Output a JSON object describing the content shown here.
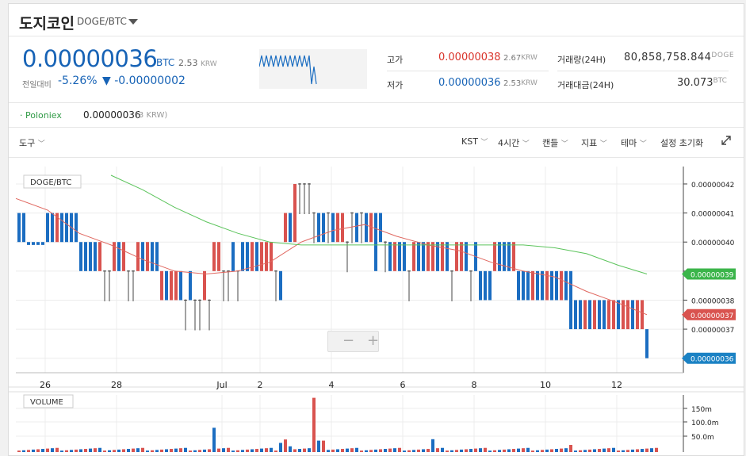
{
  "header": {
    "coin_name": "도지코인",
    "pair": "DOGE/BTC"
  },
  "ticker": {
    "price": "0.00000036",
    "price_unit": "BTC",
    "price_krw": "2.53",
    "price_krw_unit": "KRW",
    "change_label": "전일대비",
    "change_pct": "-5.26%",
    "change_abs": "▼ -0.00000002"
  },
  "stats": {
    "high_label": "고가",
    "high_value": "0.00000038",
    "high_krw": "2.67",
    "high_krw_unit": "KRW",
    "low_label": "저가",
    "low_value": "0.00000036",
    "low_krw": "2.53",
    "low_krw_unit": "KRW",
    "volume_label": "거래량(24H)",
    "volume_value": "80,858,758.844",
    "volume_unit": "DOGE",
    "turnover_label": "거래대금(24H)",
    "turnover_value": "30.073",
    "turnover_unit": "BTC"
  },
  "exchange": {
    "name": "· Poloniex",
    "price": "0.00000036",
    "krw": "(3 KRW)"
  },
  "toolbar": {
    "tools": "도구",
    "timezone": "KST",
    "interval": "4시간",
    "chart_type": "캔들",
    "indicators": "지표",
    "theme": "테마",
    "reset": "설정 초기화",
    "expand_icon": "expand-icon",
    "dropdown_icon": "chevron-down-icon"
  },
  "colors": {
    "up": "#d9534f",
    "down": "#1b6dc1",
    "ma_short": "#e0675f",
    "ma_long": "#5cc45c",
    "ma_long_tag": "#3bb54a",
    "last_tag": "#1b82c4",
    "ma_short_tag": "#d9534f"
  },
  "chart_data": {
    "type": "candlestick",
    "title": "DOGE/BTC",
    "x_tick_labels": [
      "26",
      "28",
      "Jul",
      "2",
      "4",
      "6",
      "8",
      "10",
      "12"
    ],
    "y_tick_labels": [
      "0.00000042",
      "0.00000041",
      "0.00000040",
      "0.00000039",
      "0.00000038",
      "0.00000037",
      "0.00000036"
    ],
    "ylim": [
      3.55e-07,
      4.26e-07
    ],
    "grid": true,
    "price_tags": [
      {
        "label": "0.00000039",
        "value": 3.89e-07,
        "color": "#3bb54a"
      },
      {
        "label": "0.00000037",
        "value": 3.75e-07,
        "color": "#d9534f"
      },
      {
        "label": "0.00000036",
        "value": 3.6e-07,
        "color": "#1b82c4"
      }
    ],
    "ohlc_pattern": "0.00000040-0.00000041 (Jun 25-27), 0.00000039-0.00000040 (Jun 27-29), 0.00000038-0.00000039 (Jun 29-30), 0.00000039-0.00000040 (Jul 1-2), rise to 0.00000042 (Jul 3), 0.00000040-0.00000041 (Jul 3-5), 0.00000039-0.00000040 (Jul 5-8), 0.00000038-0.00000039 (Jul 8-9), 0.00000037-0.00000039 (Jul 10-12), drop to 0.00000036 (Jul 13)",
    "volume": {
      "title": "VOLUME",
      "y_tick_labels": [
        "150m",
        "100.0m",
        "50.0m"
      ],
      "ylim": [
        0,
        200000000
      ],
      "peak_value": 190000000
    }
  }
}
